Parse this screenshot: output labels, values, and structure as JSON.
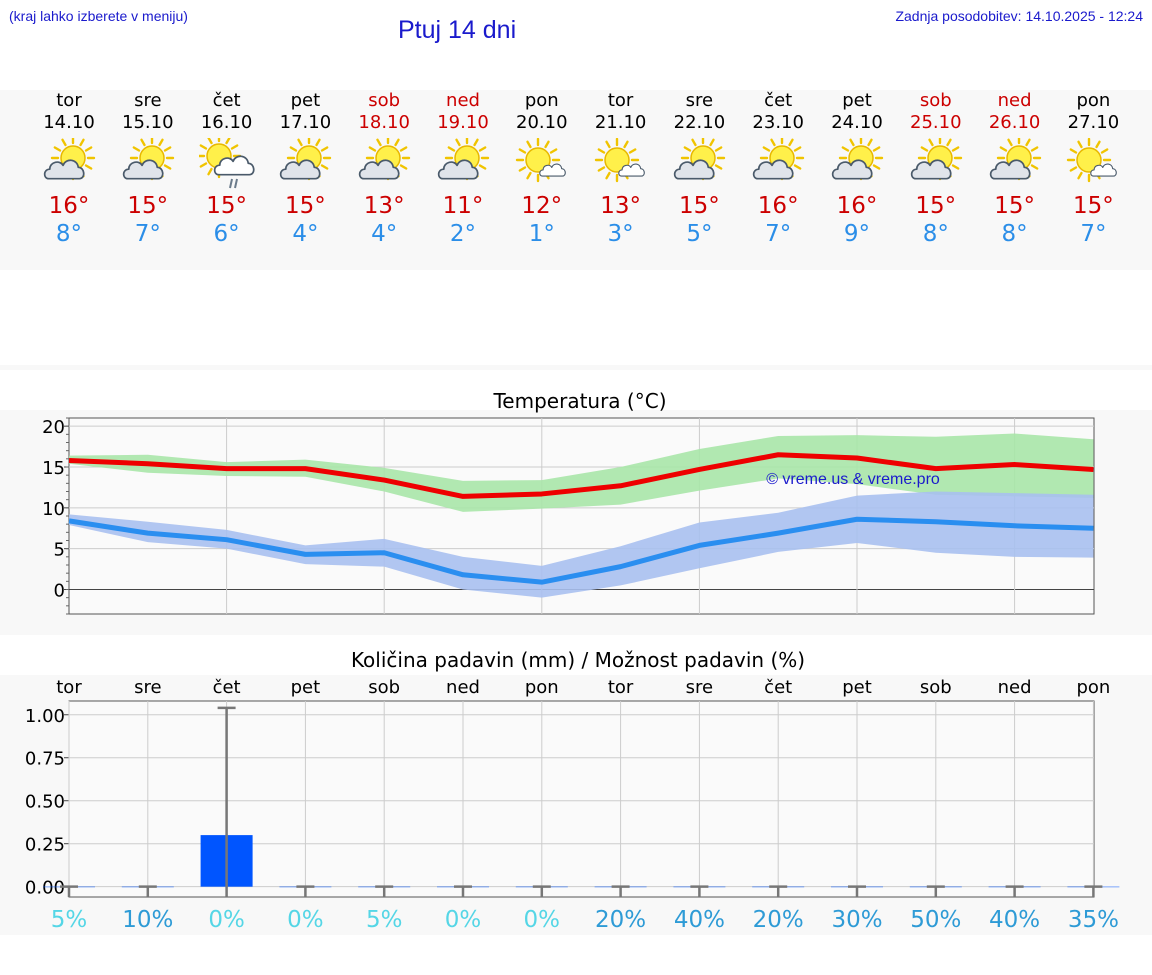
{
  "header": {
    "left_note": "(kraj lahko izberete v meniju)",
    "title": "Ptuj 14 dni",
    "updated": "Zadnja posodobitev: 14.10.2025 - 12:24"
  },
  "colors": {
    "weekday": "#000000",
    "weekend": "#cc0000",
    "tmax": "#cc0000",
    "tmin": "#2b8ee8",
    "max_line": "#ee0000",
    "max_band": "#a8e6a8",
    "min_line": "#2a8ef0",
    "min_band": "#a8c0f0",
    "bar": "#0055ff",
    "title_blue": "#1a1acc"
  },
  "days": [
    {
      "name": "tor",
      "date": "14.10",
      "weekend": false,
      "icon": "partly-cloudy-icon",
      "tmax": "16°",
      "tmin": "8°"
    },
    {
      "name": "sre",
      "date": "15.10",
      "weekend": false,
      "icon": "partly-cloudy-icon",
      "tmax": "15°",
      "tmin": "7°"
    },
    {
      "name": "čet",
      "date": "16.10",
      "weekend": false,
      "icon": "sun-cloud-rain-icon",
      "tmax": "15°",
      "tmin": "6°"
    },
    {
      "name": "pet",
      "date": "17.10",
      "weekend": false,
      "icon": "partly-cloudy-icon",
      "tmax": "15°",
      "tmin": "4°"
    },
    {
      "name": "sob",
      "date": "18.10",
      "weekend": true,
      "icon": "partly-cloudy-icon",
      "tmax": "13°",
      "tmin": "4°"
    },
    {
      "name": "ned",
      "date": "19.10",
      "weekend": true,
      "icon": "partly-cloudy-icon",
      "tmax": "11°",
      "tmin": "2°"
    },
    {
      "name": "pon",
      "date": "20.10",
      "weekend": false,
      "icon": "mostly-sunny-icon",
      "tmax": "12°",
      "tmin": "1°"
    },
    {
      "name": "tor",
      "date": "21.10",
      "weekend": false,
      "icon": "mostly-sunny-icon",
      "tmax": "13°",
      "tmin": "3°"
    },
    {
      "name": "sre",
      "date": "22.10",
      "weekend": false,
      "icon": "partly-cloudy-icon",
      "tmax": "15°",
      "tmin": "5°"
    },
    {
      "name": "čet",
      "date": "23.10",
      "weekend": false,
      "icon": "partly-cloudy-icon",
      "tmax": "16°",
      "tmin": "7°"
    },
    {
      "name": "pet",
      "date": "24.10",
      "weekend": false,
      "icon": "partly-cloudy-icon",
      "tmax": "16°",
      "tmin": "9°"
    },
    {
      "name": "sob",
      "date": "25.10",
      "weekend": true,
      "icon": "partly-cloudy-icon",
      "tmax": "15°",
      "tmin": "8°"
    },
    {
      "name": "ned",
      "date": "26.10",
      "weekend": true,
      "icon": "partly-cloudy-icon",
      "tmax": "15°",
      "tmin": "8°"
    },
    {
      "name": "pon",
      "date": "27.10",
      "weekend": false,
      "icon": "mostly-sunny-icon",
      "tmax": "15°",
      "tmin": "7°"
    }
  ],
  "chart_data": [
    {
      "type": "line",
      "title": "Temperatura (°C)",
      "watermark": "© vreme.us & vreme.pro",
      "ylim": [
        -3,
        21
      ],
      "yticks": [
        0,
        5,
        10,
        15,
        20
      ],
      "grid": true,
      "x": [
        0,
        1,
        2,
        3,
        4,
        5,
        6,
        7,
        8,
        9,
        10,
        11,
        12,
        13
      ],
      "series": [
        {
          "name": "max",
          "values": [
            15.8,
            15.4,
            14.8,
            14.8,
            13.4,
            11.4,
            11.7,
            12.7,
            14.7,
            16.5,
            16.1,
            14.8,
            15.3,
            14.7
          ],
          "band_low": [
            15.4,
            14.3,
            13.9,
            13.8,
            12.0,
            9.5,
            9.9,
            10.4,
            12.1,
            13.6,
            12.9,
            11.6,
            11.4,
            11.2
          ],
          "band_high": [
            16.4,
            16.5,
            15.6,
            15.9,
            14.9,
            13.3,
            13.4,
            15.0,
            17.2,
            18.8,
            18.9,
            18.7,
            19.1,
            18.4
          ]
        },
        {
          "name": "min",
          "values": [
            8.4,
            6.9,
            6.1,
            4.3,
            4.5,
            1.8,
            0.9,
            2.8,
            5.4,
            6.9,
            8.6,
            8.3,
            7.8,
            7.5
          ],
          "band_low": [
            7.9,
            5.8,
            5.0,
            3.1,
            2.8,
            0.0,
            -1.0,
            0.5,
            2.6,
            4.6,
            5.7,
            4.5,
            4.0,
            3.9
          ],
          "band_high": [
            9.2,
            8.3,
            7.3,
            5.4,
            6.2,
            4.0,
            2.9,
            5.3,
            8.2,
            9.4,
            11.5,
            12.0,
            11.8,
            11.6
          ]
        }
      ]
    },
    {
      "type": "bar",
      "title": "Količina padavin (mm) / Možnost padavin (%)",
      "categories": [
        "tor",
        "sre",
        "čet",
        "pet",
        "sob",
        "ned",
        "pon",
        "tor",
        "sre",
        "čet",
        "pet",
        "sob",
        "ned",
        "pon"
      ],
      "values": [
        0,
        0,
        0.3,
        0,
        0,
        0,
        0,
        0,
        0,
        0,
        0,
        0,
        0,
        0
      ],
      "error_max": [
        0,
        0,
        1.04,
        0,
        0,
        0,
        0,
        0,
        0,
        0,
        0,
        0,
        0,
        0
      ],
      "ylim": [
        -0.06,
        1.08
      ],
      "yticks": [
        "0.00",
        "0.25",
        "0.50",
        "0.75",
        "1.00"
      ],
      "ytick_values": [
        0,
        0.25,
        0.5,
        0.75,
        1.0
      ],
      "chance": [
        "5%",
        "10%",
        "0%",
        "0%",
        "5%",
        "0%",
        "0%",
        "20%",
        "40%",
        "20%",
        "30%",
        "50%",
        "40%",
        "35%"
      ],
      "chance_colors": [
        "#55d6e6",
        "#2e9bd6",
        "#55d6e6",
        "#55d6e6",
        "#55d6e6",
        "#55d6e6",
        "#55d6e6",
        "#2e9bd6",
        "#2e9bd6",
        "#2e9bd6",
        "#2e9bd6",
        "#2e9bd6",
        "#2e9bd6",
        "#2e9bd6"
      ]
    }
  ]
}
